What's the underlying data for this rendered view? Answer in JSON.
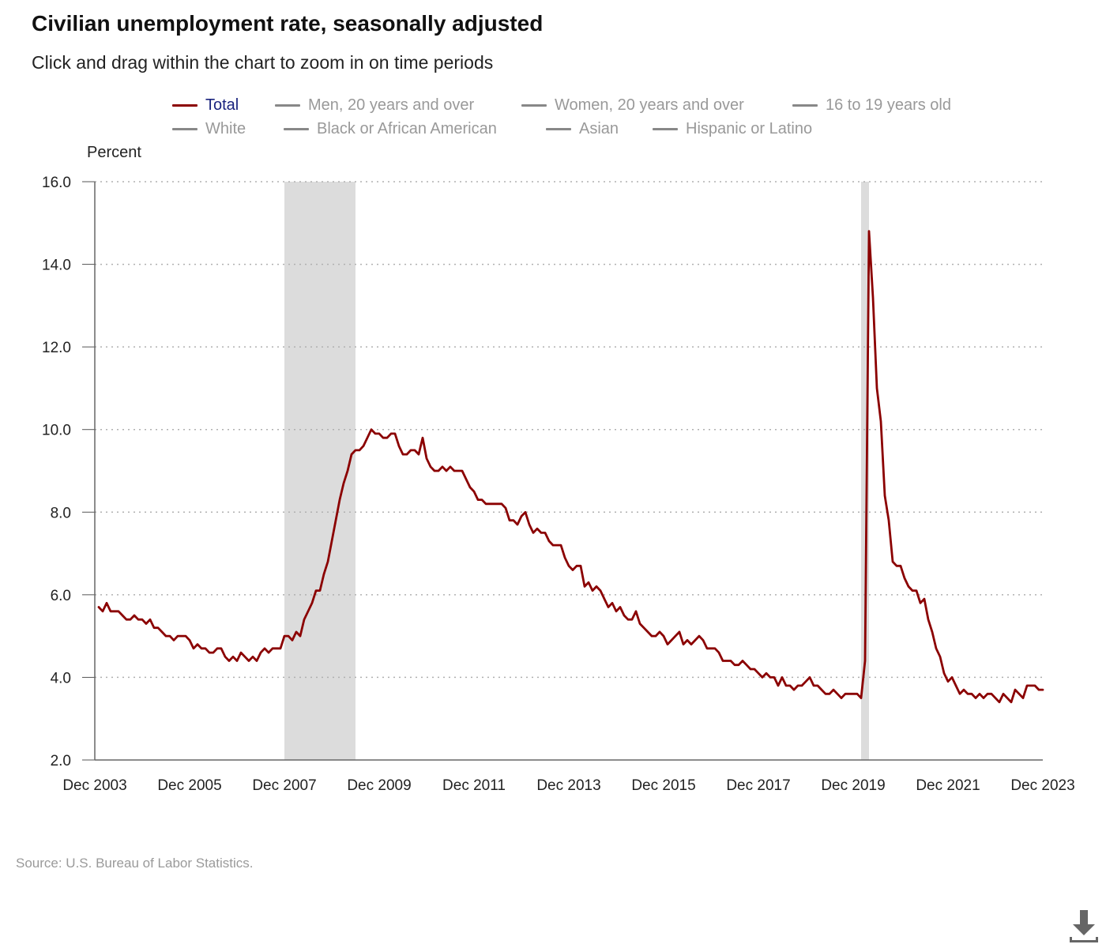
{
  "title": "Civilian unemployment rate, seasonally adjusted",
  "subtitle": "Click and drag within the chart to zoom in on time periods",
  "legend": {
    "items": [
      {
        "label": "Total",
        "color": "#8b0000",
        "active": true
      },
      {
        "label": "Men, 20 years and over",
        "color": "#888888",
        "active": false
      },
      {
        "label": "Women, 20 years and over",
        "color": "#888888",
        "active": false
      },
      {
        "label": "16 to 19 years old",
        "color": "#888888",
        "active": false
      },
      {
        "label": "White",
        "color": "#888888",
        "active": false
      },
      {
        "label": "Black or African American",
        "color": "#888888",
        "active": false
      },
      {
        "label": "Asian",
        "color": "#888888",
        "active": false
      },
      {
        "label": "Hispanic or Latino",
        "color": "#888888",
        "active": false
      }
    ]
  },
  "source": "Source: U.S. Bureau of Labor Statistics.",
  "download_icon": "download-icon",
  "chart_data": {
    "type": "line",
    "ylabel": "Percent",
    "ylim": [
      2.0,
      16.0
    ],
    "yticks": [
      "16.0",
      "14.0",
      "12.0",
      "10.0",
      "8.0",
      "6.0",
      "4.0",
      "2.0"
    ],
    "xlim": [
      "Dec 2003",
      "Dec 2023"
    ],
    "xticks": [
      "Dec 2003",
      "Dec 2005",
      "Dec 2007",
      "Dec 2009",
      "Dec 2011",
      "Dec 2013",
      "Dec 2015",
      "Dec 2017",
      "Dec 2019",
      "Dec 2021",
      "Dec 2023"
    ],
    "grid": "horizontal dotted",
    "recessions": [
      {
        "start": "Dec 2007",
        "end": "Jun 2009"
      },
      {
        "start": "Feb 2020",
        "end": "Apr 2020"
      }
    ],
    "series": [
      {
        "name": "Total",
        "color": "#8b0000",
        "start": "Jan 2004",
        "values": [
          5.7,
          5.6,
          5.8,
          5.6,
          5.6,
          5.6,
          5.5,
          5.4,
          5.4,
          5.5,
          5.4,
          5.4,
          5.3,
          5.4,
          5.2,
          5.2,
          5.1,
          5.0,
          5.0,
          4.9,
          5.0,
          5.0,
          5.0,
          4.9,
          4.7,
          4.8,
          4.7,
          4.7,
          4.6,
          4.6,
          4.7,
          4.7,
          4.5,
          4.4,
          4.5,
          4.4,
          4.6,
          4.5,
          4.4,
          4.5,
          4.4,
          4.6,
          4.7,
          4.6,
          4.7,
          4.7,
          4.7,
          5.0,
          5.0,
          4.9,
          5.1,
          5.0,
          5.4,
          5.6,
          5.8,
          6.1,
          6.1,
          6.5,
          6.8,
          7.3,
          7.8,
          8.3,
          8.7,
          9.0,
          9.4,
          9.5,
          9.5,
          9.6,
          9.8,
          10.0,
          9.9,
          9.9,
          9.8,
          9.8,
          9.9,
          9.9,
          9.6,
          9.4,
          9.4,
          9.5,
          9.5,
          9.4,
          9.8,
          9.3,
          9.1,
          9.0,
          9.0,
          9.1,
          9.0,
          9.1,
          9.0,
          9.0,
          9.0,
          8.8,
          8.6,
          8.5,
          8.3,
          8.3,
          8.2,
          8.2,
          8.2,
          8.2,
          8.2,
          8.1,
          7.8,
          7.8,
          7.7,
          7.9,
          8.0,
          7.7,
          7.5,
          7.6,
          7.5,
          7.5,
          7.3,
          7.2,
          7.2,
          7.2,
          6.9,
          6.7,
          6.6,
          6.7,
          6.7,
          6.2,
          6.3,
          6.1,
          6.2,
          6.1,
          5.9,
          5.7,
          5.8,
          5.6,
          5.7,
          5.5,
          5.4,
          5.4,
          5.6,
          5.3,
          5.2,
          5.1,
          5.0,
          5.0,
          5.1,
          5.0,
          4.8,
          4.9,
          5.0,
          5.1,
          4.8,
          4.9,
          4.8,
          4.9,
          5.0,
          4.9,
          4.7,
          4.7,
          4.7,
          4.6,
          4.4,
          4.4,
          4.4,
          4.3,
          4.3,
          4.4,
          4.3,
          4.2,
          4.2,
          4.1,
          4.0,
          4.1,
          4.0,
          4.0,
          3.8,
          4.0,
          3.8,
          3.8,
          3.7,
          3.8,
          3.8,
          3.9,
          4.0,
          3.8,
          3.8,
          3.7,
          3.6,
          3.6,
          3.7,
          3.6,
          3.5,
          3.6,
          3.6,
          3.6,
          3.6,
          3.5,
          4.4,
          14.8,
          13.2,
          11.0,
          10.2,
          8.4,
          7.8,
          6.8,
          6.7,
          6.7,
          6.4,
          6.2,
          6.1,
          6.1,
          5.8,
          5.9,
          5.4,
          5.1,
          4.7,
          4.5,
          4.1,
          3.9,
          4.0,
          3.8,
          3.6,
          3.7,
          3.6,
          3.6,
          3.5,
          3.6,
          3.5,
          3.6,
          3.6,
          3.5,
          3.4,
          3.6,
          3.5,
          3.4,
          3.7,
          3.6,
          3.5,
          3.8,
          3.8,
          3.8,
          3.7,
          3.7
        ]
      }
    ]
  }
}
